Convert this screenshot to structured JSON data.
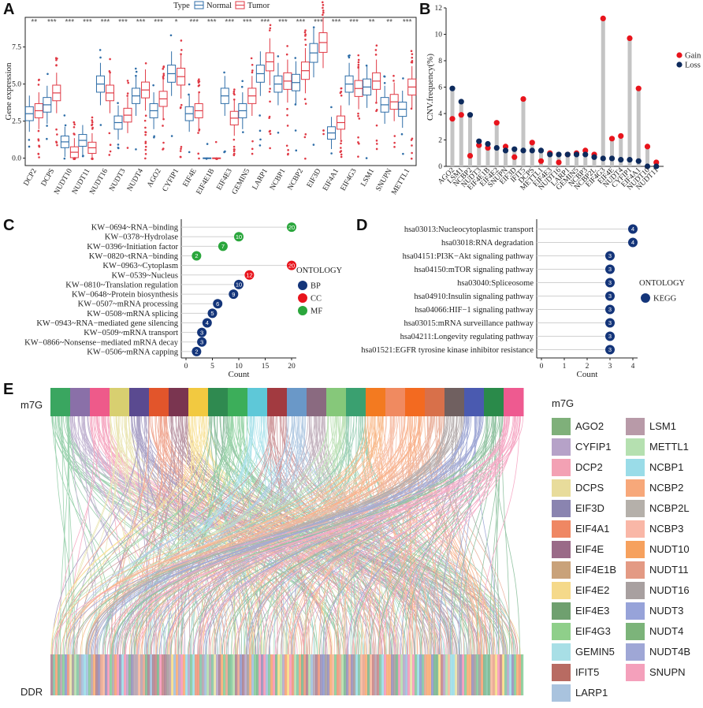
{
  "panels": {
    "A": "A",
    "B": "B",
    "C": "C",
    "D": "D",
    "E": "E"
  },
  "chart_data": [
    {
      "id": "A",
      "type": "box",
      "title": "",
      "legend_title": "Type",
      "legend": [
        "Normal",
        "Tumor"
      ],
      "colors": {
        "Normal": "#2f6ea8",
        "Tumor": "#e03a45"
      },
      "ylabel": "Gene expression",
      "ylim": [
        -0.5,
        9.5
      ],
      "yticks": [
        "0.0",
        "2.5",
        "5.0",
        "7.5"
      ],
      "ytick_values": [
        0,
        2.5,
        5,
        7.5
      ],
      "categories": [
        "DCP2",
        "DCPS",
        "NUDT10",
        "NUDT11",
        "NUDT16",
        "NUDT3",
        "NUDT4",
        "AGO2",
        "CYFIP1",
        "EIF4E",
        "EIF4E1B",
        "EIF4E3",
        "GEMIN5",
        "LARP1",
        "NCBP1",
        "NCBP2",
        "EIF3D",
        "EIF4A1",
        "EIF4G3",
        "LSM1",
        "SNUPN",
        "METTL1"
      ],
      "significance": [
        "**",
        "***",
        "***",
        "***",
        "***",
        "***",
        "***",
        "***",
        "*",
        "***",
        "***",
        "***",
        "***",
        "***",
        "***",
        "***",
        "***",
        "***",
        "***",
        "**",
        "**",
        "***"
      ],
      "normal_medians": [
        3.0,
        3.6,
        1.1,
        1.2,
        5.0,
        2.4,
        4.2,
        3.2,
        5.7,
        3.0,
        0.0,
        4.2,
        3.2,
        5.7,
        5.0,
        5.1,
        7.1,
        1.7,
        5.0,
        4.8,
        3.6,
        3.3
      ],
      "tumor_medians": [
        3.2,
        4.4,
        0.4,
        0.7,
        4.4,
        2.9,
        4.6,
        4.0,
        5.5,
        3.2,
        0.0,
        2.7,
        4.2,
        6.5,
        5.2,
        5.9,
        7.8,
        2.4,
        4.7,
        5.2,
        3.8,
        4.8
      ]
    },
    {
      "id": "B",
      "type": "lollipop",
      "ylabel": "CNV.frequency(%)",
      "ylim": [
        0,
        12
      ],
      "yticks": [
        "0",
        "2",
        "4",
        "6",
        "8",
        "10",
        "12"
      ],
      "ytick_values": [
        0,
        2,
        4,
        6,
        8,
        10,
        12
      ],
      "categories": [
        "AGO2",
        "LSM1",
        "NCBP2",
        "NUDT3",
        "EIF4E1B",
        "EIF4E2",
        "SNUPN",
        "EIF3D",
        "IFIT5",
        "DCPS",
        "METTL1",
        "EIF4E3",
        "NUDT16",
        "LARP1",
        "GEMIN5",
        "NCBP3",
        "NCBP2L",
        "EIF4G3",
        "EIF4E",
        "NUDT4",
        "CYFIP1",
        "EIF4A1",
        "NUDT10",
        "NUDT11"
      ],
      "series": [
        {
          "name": "Gain",
          "color": "#e8141c",
          "values": [
            3.6,
            3.9,
            0.8,
            1.6,
            1.4,
            3.3,
            1.5,
            0.7,
            5.1,
            1.8,
            0.4,
            1.0,
            0.3,
            0.9,
            1.0,
            1.2,
            0.9,
            11.2,
            2.1,
            2.3,
            9.7,
            5.9,
            1.5,
            0.3
          ]
        },
        {
          "name": "Loss",
          "color": "#0d2a5c",
          "values": [
            5.9,
            4.9,
            3.9,
            1.9,
            1.7,
            1.4,
            1.2,
            1.3,
            1.2,
            1.2,
            1.2,
            0.9,
            0.9,
            0.9,
            0.9,
            0.9,
            0.7,
            0.6,
            0.6,
            0.5,
            0.5,
            0.4,
            0.0,
            0.0
          ]
        }
      ]
    },
    {
      "id": "C",
      "type": "dot",
      "xlabel": "Count",
      "xlim": [
        0,
        20
      ],
      "xticks": [
        "0",
        "5",
        "10",
        "15",
        "20"
      ],
      "xtick_values": [
        0,
        5,
        10,
        15,
        20
      ],
      "legend_title": "ONTOLOGY",
      "legend": [
        {
          "name": "BP",
          "color": "#14357a"
        },
        {
          "name": "CC",
          "color": "#e8141c"
        },
        {
          "name": "MF",
          "color": "#2aa63c"
        }
      ],
      "terms": [
        {
          "label": "KW−0694~RNA−binding",
          "count": 20,
          "ont": "MF"
        },
        {
          "label": "KW−0378~Hydrolase",
          "count": 10,
          "ont": "MF"
        },
        {
          "label": "KW−0396~Initiation factor",
          "count": 7,
          "ont": "MF"
        },
        {
          "label": "KW−0820~tRNA−binding",
          "count": 2,
          "ont": "MF"
        },
        {
          "label": "KW−0963~Cytoplasm",
          "count": 20,
          "ont": "CC"
        },
        {
          "label": "KW−0539~Nucleus",
          "count": 12,
          "ont": "CC"
        },
        {
          "label": "KW−0810~Translation regulation",
          "count": 10,
          "ont": "BP"
        },
        {
          "label": "KW−0648~Protein biosynthesis",
          "count": 9,
          "ont": "BP"
        },
        {
          "label": "KW−0507~mRNA processing",
          "count": 6,
          "ont": "BP"
        },
        {
          "label": "KW−0508~mRNA splicing",
          "count": 5,
          "ont": "BP"
        },
        {
          "label": "KW−0943~RNA−mediated gene silencing",
          "count": 4,
          "ont": "BP"
        },
        {
          "label": "KW−0509~mRNA transport",
          "count": 3,
          "ont": "BP"
        },
        {
          "label": "KW−0866~Nonsense−mediated mRNA decay",
          "count": 3,
          "ont": "BP"
        },
        {
          "label": "KW−0506~mRNA capping",
          "count": 2,
          "ont": "BP"
        }
      ]
    },
    {
      "id": "D",
      "type": "dot",
      "xlabel": "Count",
      "xlim": [
        0,
        4
      ],
      "xticks": [
        "0",
        "1",
        "2",
        "3",
        "4"
      ],
      "xtick_values": [
        0,
        1,
        2,
        3,
        4
      ],
      "legend_title": "ONTOLOGY",
      "legend": [
        {
          "name": "KEGG",
          "color": "#14357a"
        }
      ],
      "terms": [
        {
          "label": "hsa03013:Nucleocytoplasmic transport",
          "count": 4,
          "ont": "KEGG"
        },
        {
          "label": "hsa03018:RNA degradation",
          "count": 4,
          "ont": "KEGG"
        },
        {
          "label": "hsa04151:PI3K−Akt signaling pathway",
          "count": 3,
          "ont": "KEGG"
        },
        {
          "label": "hsa04150:mTOR signaling pathway",
          "count": 3,
          "ont": "KEGG"
        },
        {
          "label": "hsa03040:Spliceosome",
          "count": 3,
          "ont": "KEGG"
        },
        {
          "label": "hsa04910:Insulin signaling pathway",
          "count": 3,
          "ont": "KEGG"
        },
        {
          "label": "hsa04066:HIF−1 signaling pathway",
          "count": 3,
          "ont": "KEGG"
        },
        {
          "label": "hsa03015:mRNA surveillance pathway",
          "count": 3,
          "ont": "KEGG"
        },
        {
          "label": "hsa04211:Longevity regulating pathway",
          "count": 3,
          "ont": "KEGG"
        },
        {
          "label": "hsa01521:EGFR tyrosine kinase inhibitor resistance",
          "count": 3,
          "ont": "KEGG"
        }
      ]
    },
    {
      "id": "E",
      "type": "sankey",
      "top_label": "m7G",
      "bottom_label": "DDR",
      "legend_title": "m7G",
      "legend": [
        {
          "name": "AGO2",
          "color": "#7fb07a"
        },
        {
          "name": "CYFIP1",
          "color": "#b6a2c8"
        },
        {
          "name": "DCP2",
          "color": "#f3a1b4"
        },
        {
          "name": "DCPS",
          "color": "#e8dc9b"
        },
        {
          "name": "EIF3D",
          "color": "#8a84b0"
        },
        {
          "name": "EIF4A1",
          "color": "#ef8763"
        },
        {
          "name": "EIF4E",
          "color": "#9a6a88"
        },
        {
          "name": "EIF4E1B",
          "color": "#c9a27a"
        },
        {
          "name": "EIF4E2",
          "color": "#f5d98a"
        },
        {
          "name": "EIF4E3",
          "color": "#6fa06f"
        },
        {
          "name": "EIF4G3",
          "color": "#8fcf8a"
        },
        {
          "name": "GEMIN5",
          "color": "#a8dfe6"
        },
        {
          "name": "IFIT5",
          "color": "#b86b62"
        },
        {
          "name": "LARP1",
          "color": "#a9c3de"
        },
        {
          "name": "LSM1",
          "color": "#b89aa8"
        },
        {
          "name": "METTL1",
          "color": "#b5e0b0"
        },
        {
          "name": "NCBP1",
          "color": "#9adce8"
        },
        {
          "name": "NCBP2",
          "color": "#f7a87a"
        },
        {
          "name": "NCBP2L",
          "color": "#b5b0aa"
        },
        {
          "name": "NCBP3",
          "color": "#f9b7a7"
        },
        {
          "name": "NUDT10",
          "color": "#f6a15e"
        },
        {
          "name": "NUDT11",
          "color": "#e39a84"
        },
        {
          "name": "NUDT16",
          "color": "#a8a0a0"
        },
        {
          "name": "NUDT3",
          "color": "#97a3d9"
        },
        {
          "name": "NUDT4",
          "color": "#7cb47a"
        },
        {
          "name": "NUDT4B",
          "color": "#9fa7d6"
        },
        {
          "name": "SNUPN",
          "color": "#f4a0bb"
        }
      ],
      "top_nodes": [
        {
          "name": "AGO2",
          "color": "#3aa660"
        },
        {
          "name": "CYFIP1",
          "color": "#8a70a8"
        },
        {
          "name": "DCP2",
          "color": "#ee5a8a"
        },
        {
          "name": "DCPS",
          "color": "#d8cf70"
        },
        {
          "name": "EIF3D",
          "color": "#5a4a90"
        },
        {
          "name": "EIF4A1",
          "color": "#e2552b"
        },
        {
          "name": "EIF4E",
          "color": "#7a3550"
        },
        {
          "name": "EIF4E2",
          "color": "#f2c940"
        },
        {
          "name": "EIF4E3",
          "color": "#2f8a50"
        },
        {
          "name": "EIF4G3",
          "color": "#3cae5a"
        },
        {
          "name": "GEMIN5",
          "color": "#5ec8d8"
        },
        {
          "name": "IFIT5",
          "color": "#a23a40"
        },
        {
          "name": "LARP1",
          "color": "#6a98c8"
        },
        {
          "name": "LSM1",
          "color": "#8a6a80"
        },
        {
          "name": "METTL1",
          "color": "#86c87a"
        },
        {
          "name": "NCBP1",
          "color": "#3aa070"
        },
        {
          "name": "NCBP2",
          "color": "#f37a20"
        },
        {
          "name": "NCBP3",
          "color": "#f08a60"
        },
        {
          "name": "NUDT10",
          "color": "#f36a20"
        },
        {
          "name": "NUDT11",
          "color": "#d8704a"
        },
        {
          "name": "NUDT16",
          "color": "#706060"
        },
        {
          "name": "NUDT3",
          "color": "#4a5ab0"
        },
        {
          "name": "NUDT4",
          "color": "#2a8a4a"
        },
        {
          "name": "SNUPN",
          "color": "#ee5a90"
        }
      ]
    }
  ]
}
